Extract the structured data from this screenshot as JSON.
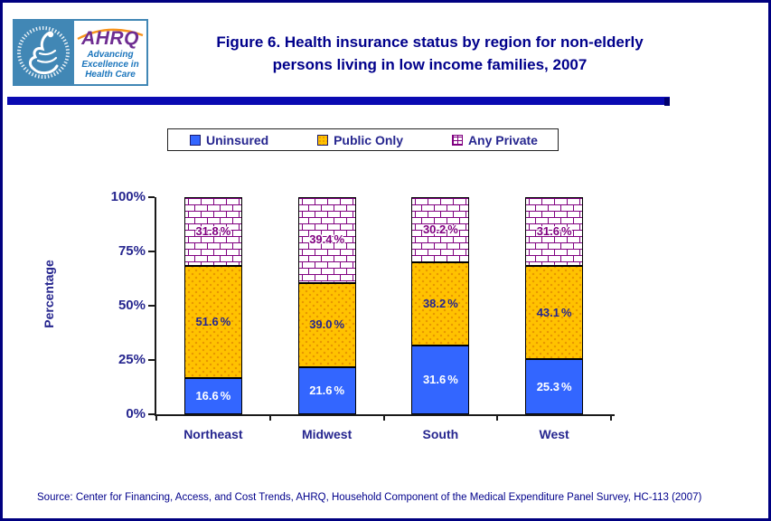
{
  "header": {
    "title_line1": "Figure 6. Health insurance status by region for non-elderly",
    "title_line2": "persons living in low income families, 2007",
    "logo": {
      "hhs_name": "Department of Health & Human Services USA seal",
      "ahrq_acronym": "AHRQ",
      "ahrq_tagline_lines": [
        "Advancing",
        "Excellence in",
        "Health Care"
      ]
    }
  },
  "chart_data": {
    "type": "bar",
    "stacked": true,
    "title": "Figure 6. Health insurance status by region for non-elderly persons living in low income families, 2007",
    "categories": [
      "Northeast",
      "Midwest",
      "South",
      "West"
    ],
    "series": [
      {
        "name": "Uninsured",
        "color": "#3366FF",
        "pattern": "solid",
        "values": [
          16.6,
          21.6,
          31.6,
          25.3
        ]
      },
      {
        "name": "Public Only",
        "color": "#FFC200",
        "pattern": "dots",
        "values": [
          51.6,
          39.0,
          38.2,
          43.1
        ]
      },
      {
        "name": "Any Private",
        "color": "#FFFFFF",
        "pattern": "brick",
        "pattern_color": "#800080",
        "values": [
          31.8,
          39.4,
          30.2,
          31.6
        ]
      }
    ],
    "ylabel": "Percentage",
    "yticks": [
      "0%",
      "25%",
      "50%",
      "75%",
      "100%"
    ],
    "ylim": [
      0,
      100
    ],
    "value_suffix": "%",
    "legend_position": "top",
    "grid": false
  },
  "source_note": "Source: Center for Financing, Access, and Cost Trends, AHRQ, Household Component of the Medical Expenditure Panel Survey, HC-113 (2007)",
  "colors": {
    "page_border": "#000080",
    "title_text": "#00008B",
    "divider_bar": "#0A0AB2",
    "axis_text": "#26268F",
    "uninsured_fill": "#3366FF",
    "public_only_fill": "#FFC200",
    "any_private_line": "#800080",
    "hhs_logo_background": "#4187B5",
    "ahrq_purple": "#6E2C91",
    "ahrq_blue": "#1B75BC"
  }
}
